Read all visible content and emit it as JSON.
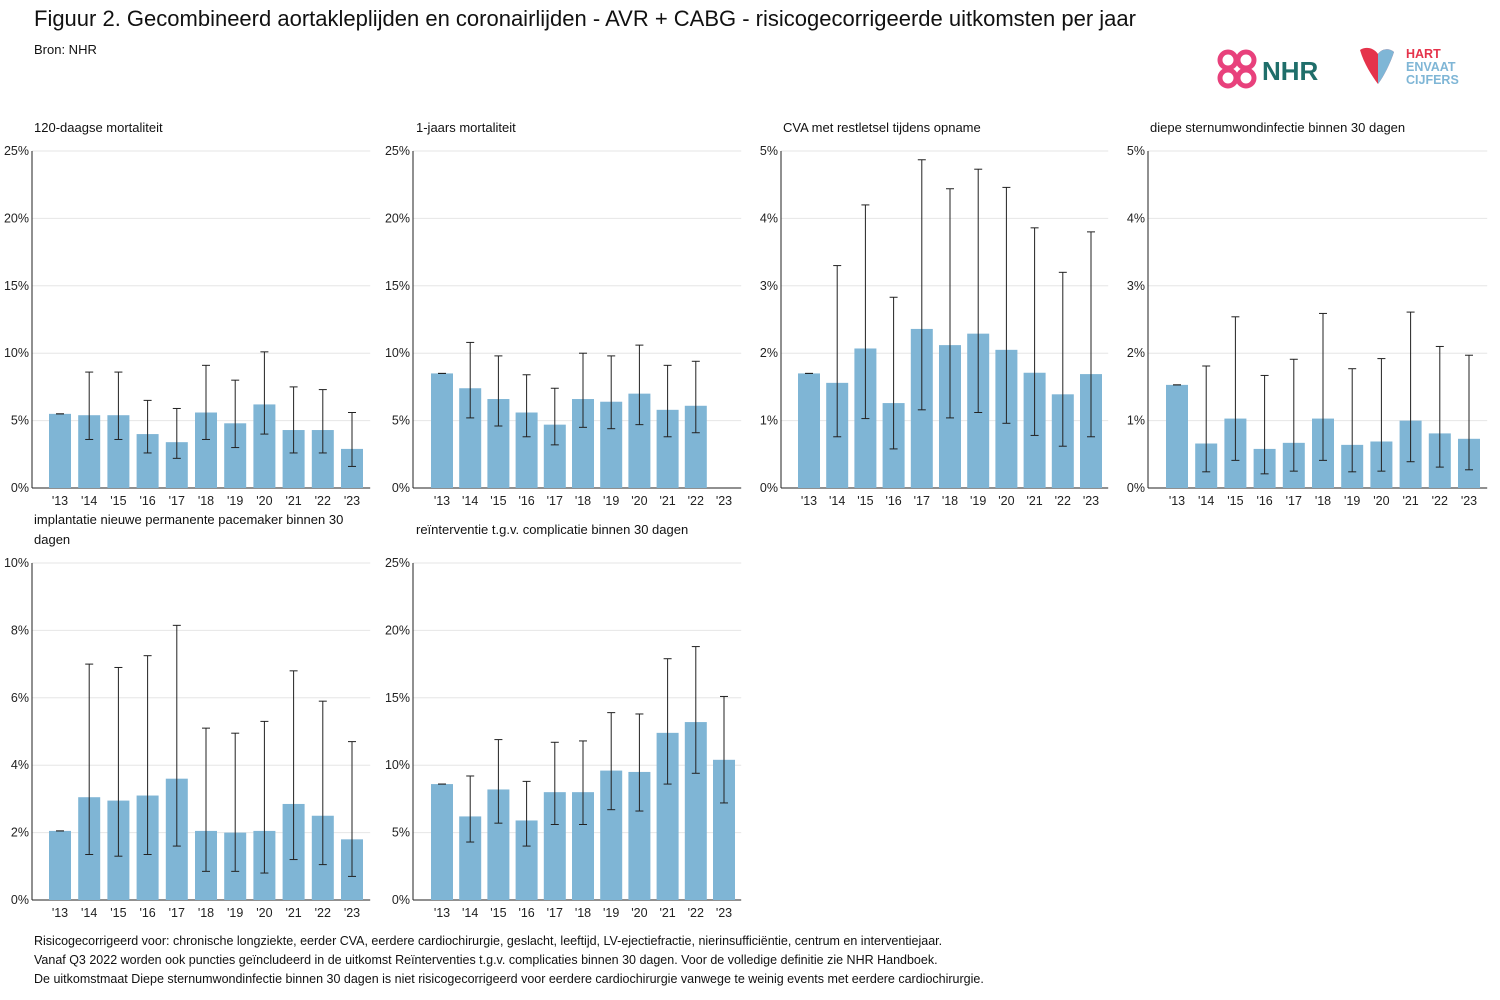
{
  "header": {
    "title": "Figuur 2. Gecombineerd aortakleplijden en coronairlijden - AVR + CABG - risicogecorrigeerde uitkomsten per jaar",
    "source": "Bron: NHR"
  },
  "logos": {
    "nhr_text": "NHR",
    "hvc_line1": "HART",
    "hvc_line2": "ENVAAT",
    "hvc_line3": "CIJFERS"
  },
  "colors": {
    "bar": "#7fb5d5",
    "grid": "#e6e6e6",
    "axis": "#222222",
    "nhr_pink": "#e8417c",
    "nhr_teal": "#1f6e6a",
    "hvc_red": "#e5334b",
    "hvc_blue": "#7fb6d6"
  },
  "chart_data": [
    {
      "type": "bar",
      "title": "120-daagse mortaliteit",
      "categories": [
        "'13",
        "'14",
        "'15",
        "'16",
        "'17",
        "'18",
        "'19",
        "'20",
        "'21",
        "'22",
        "'23"
      ],
      "yticks": [
        "0%",
        "5%",
        "10%",
        "15%",
        "20%",
        "25%"
      ],
      "ylim": [
        0,
        25
      ],
      "values": [
        5.5,
        5.4,
        5.4,
        4.0,
        3.4,
        5.6,
        4.8,
        6.2,
        4.3,
        4.3,
        2.9
      ],
      "lower": [
        5.5,
        3.6,
        3.6,
        2.6,
        2.2,
        3.6,
        3.0,
        4.0,
        2.6,
        2.6,
        1.6
      ],
      "upper": [
        5.5,
        8.6,
        8.6,
        6.5,
        5.9,
        9.1,
        8.0,
        10.1,
        7.5,
        7.3,
        5.6
      ]
    },
    {
      "type": "bar",
      "title": "1-jaars mortaliteit",
      "categories": [
        "'13",
        "'14",
        "'15",
        "'16",
        "'17",
        "'18",
        "'19",
        "'20",
        "'21",
        "'22",
        "'23"
      ],
      "yticks": [
        "0%",
        "5%",
        "10%",
        "15%",
        "20%",
        "25%"
      ],
      "ylim": [
        0,
        25
      ],
      "values": [
        8.5,
        7.4,
        6.6,
        5.6,
        4.7,
        6.6,
        6.4,
        7.0,
        5.8,
        6.1,
        null
      ],
      "lower": [
        8.5,
        5.2,
        4.6,
        3.8,
        3.2,
        4.5,
        4.4,
        4.7,
        3.8,
        4.1,
        null
      ],
      "upper": [
        8.5,
        10.8,
        9.8,
        8.4,
        7.4,
        10.0,
        9.8,
        10.6,
        9.1,
        9.4,
        null
      ]
    },
    {
      "type": "bar",
      "title": "CVA met restletsel tijdens opname",
      "categories": [
        "'13",
        "'14",
        "'15",
        "'16",
        "'17",
        "'18",
        "'19",
        "'20",
        "'21",
        "'22",
        "'23"
      ],
      "yticks": [
        "0%",
        "1%",
        "2%",
        "3%",
        "4%",
        "5%"
      ],
      "ylim": [
        0,
        5
      ],
      "values": [
        1.7,
        1.56,
        2.07,
        1.26,
        2.36,
        2.12,
        2.29,
        2.05,
        1.71,
        1.39,
        1.69
      ],
      "lower": [
        1.7,
        0.76,
        1.03,
        0.58,
        1.16,
        1.04,
        1.12,
        0.96,
        0.78,
        0.62,
        0.76
      ],
      "upper": [
        1.7,
        3.3,
        4.2,
        2.83,
        4.87,
        4.44,
        4.73,
        4.46,
        3.86,
        3.2,
        3.8
      ]
    },
    {
      "type": "bar",
      "title": "diepe sternumwondinfectie binnen 30 dagen",
      "categories": [
        "'13",
        "'14",
        "'15",
        "'16",
        "'17",
        "'18",
        "'19",
        "'20",
        "'21",
        "'22",
        "'23"
      ],
      "yticks": [
        "0%",
        "1%",
        "2%",
        "3%",
        "4%",
        "5%"
      ],
      "ylim": [
        0,
        5
      ],
      "values": [
        1.53,
        0.66,
        1.03,
        0.58,
        0.67,
        1.03,
        0.64,
        0.69,
        1.0,
        0.81,
        0.73
      ],
      "lower": [
        1.53,
        0.24,
        0.41,
        0.21,
        0.25,
        0.41,
        0.24,
        0.25,
        0.39,
        0.31,
        0.27
      ],
      "upper": [
        1.53,
        1.81,
        2.54,
        1.67,
        1.91,
        2.59,
        1.77,
        1.92,
        2.61,
        2.1,
        1.97
      ]
    },
    {
      "type": "bar",
      "title": "implantatie nieuwe permanente pacemaker binnen 30\n dagen",
      "categories": [
        "'13",
        "'14",
        "'15",
        "'16",
        "'17",
        "'18",
        "'19",
        "'20",
        "'21",
        "'22",
        "'23"
      ],
      "yticks": [
        "0%",
        "2%",
        "4%",
        "6%",
        "8%",
        "10%"
      ],
      "ylim": [
        0,
        10
      ],
      "values": [
        2.05,
        3.05,
        2.95,
        3.1,
        3.6,
        2.05,
        2.0,
        2.05,
        2.85,
        2.5,
        1.8
      ],
      "lower": [
        2.05,
        1.35,
        1.3,
        1.35,
        1.6,
        0.85,
        0.85,
        0.8,
        1.2,
        1.05,
        0.7
      ],
      "upper": [
        2.05,
        7.0,
        6.9,
        7.25,
        8.15,
        5.1,
        4.95,
        5.3,
        6.8,
        5.9,
        4.7
      ]
    },
    {
      "type": "bar",
      "title": "reïnterventie t.g.v. complicatie binnen 30 dagen",
      "categories": [
        "'13",
        "'14",
        "'15",
        "'16",
        "'17",
        "'18",
        "'19",
        "'20",
        "'21",
        "'22",
        "'23"
      ],
      "yticks": [
        "0%",
        "5%",
        "10%",
        "15%",
        "20%",
        "25%"
      ],
      "ylim": [
        0,
        25
      ],
      "values": [
        8.6,
        6.2,
        8.2,
        5.9,
        8.0,
        8.0,
        9.6,
        9.5,
        12.4,
        13.2,
        10.4
      ],
      "lower": [
        8.6,
        4.3,
        5.7,
        4.0,
        5.6,
        5.6,
        6.7,
        6.6,
        8.6,
        9.4,
        7.2
      ],
      "upper": [
        8.6,
        9.2,
        11.9,
        8.8,
        11.7,
        11.8,
        13.9,
        13.8,
        17.9,
        18.8,
        15.1
      ]
    }
  ],
  "footnotes": [
    "Risicogecorrigeerd voor: chronische longziekte, eerder CVA, eerdere cardiochirurgie, geslacht, leeftijd, LV-ejectiefractie, nierinsufficiëntie, centrum en interventiejaar.",
    "Vanaf Q3 2022 worden ook puncties geïncludeerd in de uitkomst Reïnterventies t.g.v. complicaties binnen 30 dagen. Voor de volledige definitie zie NHR Handboek.",
    "De uitkomstmaat Diepe sternumwondinfectie binnen 30 dagen is niet risicogecorrigeerd voor eerdere cardiochirurgie vanwege te weinig events met eerdere cardiochirurgie."
  ]
}
